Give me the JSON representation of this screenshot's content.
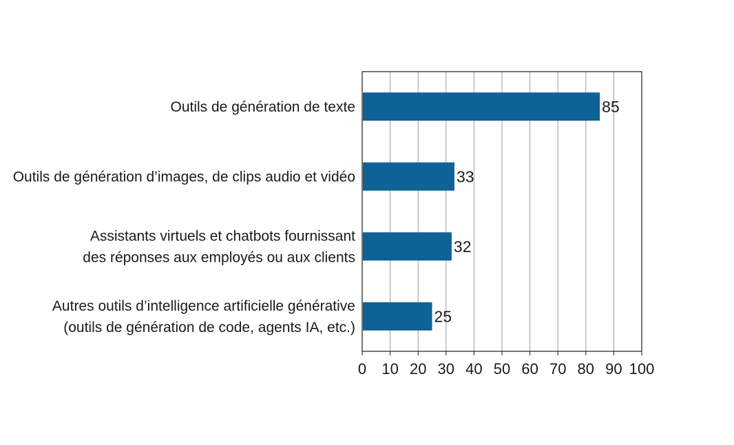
{
  "chart_data": {
    "type": "bar",
    "orientation": "horizontal",
    "categories": [
      [
        "Outils de génération de texte"
      ],
      [
        "Outils de génération d’images, de clips audio et vidéo"
      ],
      [
        "Assistants virtuels et chatbots fournissant",
        "des réponses aux employés ou aux clients"
      ],
      [
        "Autres outils d’intelligence artificielle générative",
        "(outils de génération de code, agents IA, etc.)"
      ]
    ],
    "values": [
      85,
      33,
      32,
      25
    ],
    "value_labels": [
      "85",
      "33",
      "32",
      "25"
    ],
    "xlim": [
      0,
      100
    ],
    "xticks": [
      0,
      10,
      20,
      30,
      40,
      50,
      60,
      70,
      80,
      90,
      100
    ],
    "grid": true,
    "bar_color": "#0e6295",
    "grid_color": "#9a9a9a",
    "title": "",
    "xlabel": "",
    "ylabel": ""
  }
}
